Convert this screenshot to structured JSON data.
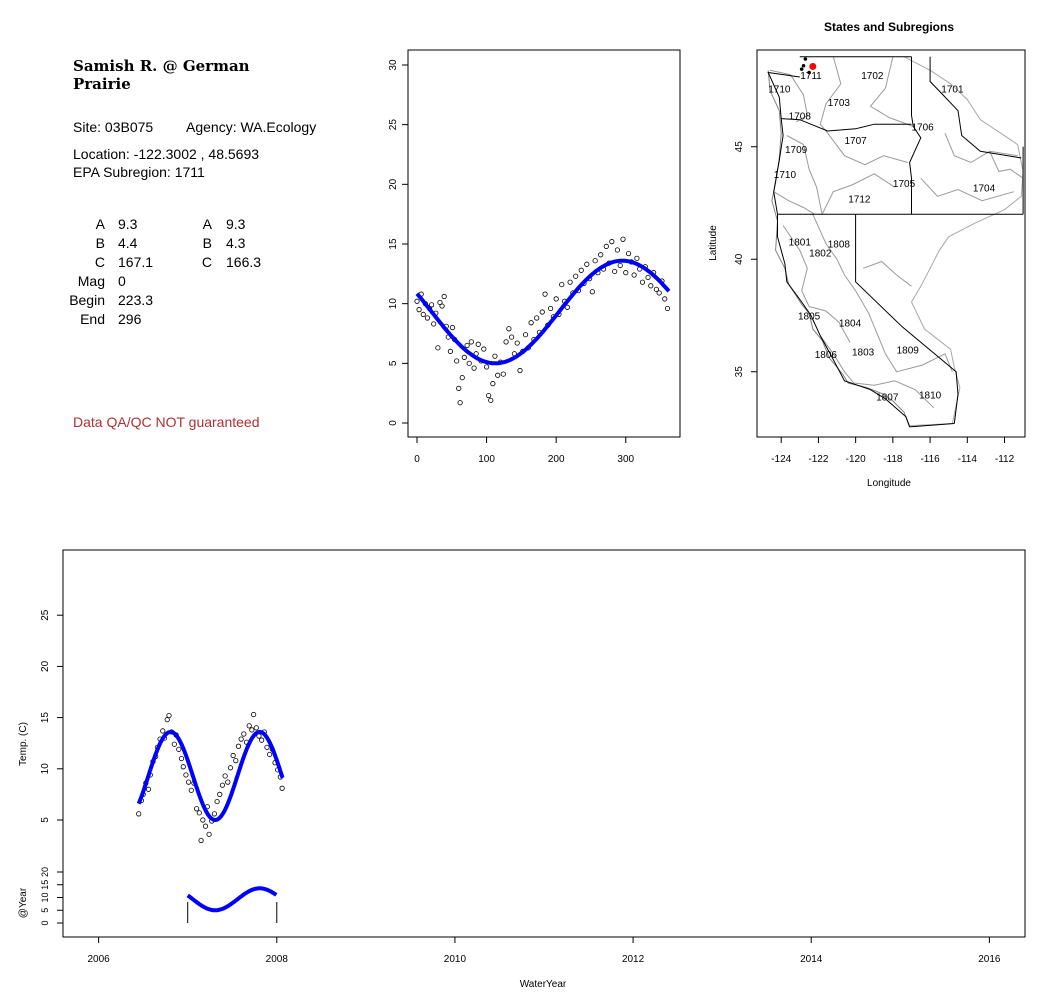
{
  "site_info": {
    "title": "Samish R. @ German Prairie",
    "site": "Site: 03B075",
    "agency": "Agency: WA.Ecology",
    "location": "Location: -122.3002 , 48.5693",
    "subregion": "EPA Subregion: 1711",
    "params_left": [
      {
        "label": "A",
        "value": "9.3"
      },
      {
        "label": "B",
        "value": "4.4"
      },
      {
        "label": "C",
        "value": "167.1"
      },
      {
        "label": "Mag",
        "value": "0"
      },
      {
        "label": "Begin",
        "value": "223.3"
      },
      {
        "label": "End",
        "value": "296"
      }
    ],
    "params_right": [
      {
        "label": "A",
        "value": "9.3"
      },
      {
        "label": "B",
        "value": "4.3"
      },
      {
        "label": "C",
        "value": "166.3"
      }
    ],
    "qa_note": "Data QA/QC NOT guaranteed",
    "qa_color": "#b03030"
  },
  "chart_data": [
    {
      "type": "scatter",
      "name": "day-of-year",
      "title": "",
      "xlabel": "",
      "ylabel": "",
      "xlim": [
        0,
        365
      ],
      "ylim": [
        0,
        30
      ],
      "x_ticks": [
        0,
        100,
        200,
        300
      ],
      "y_ticks": [
        0,
        5,
        10,
        15,
        20,
        25,
        30
      ],
      "fit_params": {
        "A": 9.3,
        "B": 4.3,
        "C": 166.3
      },
      "fit_color": "#0000ff",
      "points": [
        {
          "x": 0,
          "y": 10.2
        },
        {
          "x": 3,
          "y": 9.5
        },
        {
          "x": 6,
          "y": 10.8
        },
        {
          "x": 9,
          "y": 9.1
        },
        {
          "x": 12,
          "y": 10.0
        },
        {
          "x": 15,
          "y": 8.8
        },
        {
          "x": 18,
          "y": 9.6
        },
        {
          "x": 21,
          "y": 9.9
        },
        {
          "x": 24,
          "y": 8.3
        },
        {
          "x": 27,
          "y": 9.2
        },
        {
          "x": 30,
          "y": 6.3
        },
        {
          "x": 33,
          "y": 10.1
        },
        {
          "x": 36,
          "y": 9.8
        },
        {
          "x": 39,
          "y": 10.6
        },
        {
          "x": 42,
          "y": 8.1
        },
        {
          "x": 45,
          "y": 7.2
        },
        {
          "x": 48,
          "y": 6.0
        },
        {
          "x": 51,
          "y": 8.0
        },
        {
          "x": 54,
          "y": 7.0
        },
        {
          "x": 57,
          "y": 5.2
        },
        {
          "x": 60,
          "y": 2.9
        },
        {
          "x": 62,
          "y": 1.7
        },
        {
          "x": 65,
          "y": 3.8
        },
        {
          "x": 68,
          "y": 5.5
        },
        {
          "x": 72,
          "y": 6.5
        },
        {
          "x": 75,
          "y": 5.0
        },
        {
          "x": 78,
          "y": 6.8
        },
        {
          "x": 82,
          "y": 4.6
        },
        {
          "x": 85,
          "y": 5.8
        },
        {
          "x": 88,
          "y": 6.6
        },
        {
          "x": 92,
          "y": 5.2
        },
        {
          "x": 96,
          "y": 6.2
        },
        {
          "x": 100,
          "y": 4.7
        },
        {
          "x": 103,
          "y": 2.3
        },
        {
          "x": 106,
          "y": 1.9
        },
        {
          "x": 109,
          "y": 3.3
        },
        {
          "x": 112,
          "y": 5.6
        },
        {
          "x": 116,
          "y": 4.0
        },
        {
          "x": 120,
          "y": 5.1
        },
        {
          "x": 124,
          "y": 4.1
        },
        {
          "x": 128,
          "y": 6.8
        },
        {
          "x": 132,
          "y": 7.9
        },
        {
          "x": 136,
          "y": 7.2
        },
        {
          "x": 140,
          "y": 5.8
        },
        {
          "x": 144,
          "y": 6.7
        },
        {
          "x": 148,
          "y": 4.4
        },
        {
          "x": 152,
          "y": 6.0
        },
        {
          "x": 156,
          "y": 7.4
        },
        {
          "x": 160,
          "y": 6.3
        },
        {
          "x": 164,
          "y": 8.4
        },
        {
          "x": 168,
          "y": 7.0
        },
        {
          "x": 172,
          "y": 8.8
        },
        {
          "x": 176,
          "y": 7.6
        },
        {
          "x": 180,
          "y": 9.3
        },
        {
          "x": 184,
          "y": 10.8
        },
        {
          "x": 188,
          "y": 8.2
        },
        {
          "x": 192,
          "y": 9.6
        },
        {
          "x": 196,
          "y": 8.9
        },
        {
          "x": 200,
          "y": 10.4
        },
        {
          "x": 204,
          "y": 9.1
        },
        {
          "x": 208,
          "y": 11.6
        },
        {
          "x": 212,
          "y": 10.2
        },
        {
          "x": 216,
          "y": 9.7
        },
        {
          "x": 220,
          "y": 11.8
        },
        {
          "x": 224,
          "y": 10.9
        },
        {
          "x": 228,
          "y": 12.3
        },
        {
          "x": 232,
          "y": 11.1
        },
        {
          "x": 236,
          "y": 12.8
        },
        {
          "x": 240,
          "y": 11.7
        },
        {
          "x": 244,
          "y": 13.3
        },
        {
          "x": 248,
          "y": 12.1
        },
        {
          "x": 252,
          "y": 11.0
        },
        {
          "x": 256,
          "y": 13.6
        },
        {
          "x": 260,
          "y": 12.6
        },
        {
          "x": 264,
          "y": 14.1
        },
        {
          "x": 268,
          "y": 12.9
        },
        {
          "x": 272,
          "y": 14.8
        },
        {
          "x": 276,
          "y": 13.4
        },
        {
          "x": 280,
          "y": 15.2
        },
        {
          "x": 284,
          "y": 12.7
        },
        {
          "x": 288,
          "y": 14.5
        },
        {
          "x": 292,
          "y": 13.2
        },
        {
          "x": 296,
          "y": 15.4
        },
        {
          "x": 300,
          "y": 12.6
        },
        {
          "x": 304,
          "y": 14.2
        },
        {
          "x": 308,
          "y": 13.5
        },
        {
          "x": 312,
          "y": 12.4
        },
        {
          "x": 316,
          "y": 13.8
        },
        {
          "x": 320,
          "y": 12.9
        },
        {
          "x": 324,
          "y": 11.8
        },
        {
          "x": 328,
          "y": 13.1
        },
        {
          "x": 332,
          "y": 12.2
        },
        {
          "x": 336,
          "y": 11.5
        },
        {
          "x": 340,
          "y": 12.6
        },
        {
          "x": 344,
          "y": 11.2
        },
        {
          "x": 348,
          "y": 10.9
        },
        {
          "x": 352,
          "y": 11.9
        },
        {
          "x": 356,
          "y": 10.4
        },
        {
          "x": 360,
          "y": 9.6
        }
      ]
    },
    {
      "type": "map",
      "name": "states-and-subregions",
      "title": "States and Subregions",
      "xlabel": "Longitude",
      "ylabel": "Latitude",
      "xlim": [
        -125.3,
        -110.9
      ],
      "ylim": [
        32.1,
        49.3
      ],
      "x_ticks": [
        -124,
        -122,
        -120,
        -118,
        -116,
        -114,
        -112
      ],
      "y_ticks": [
        35,
        40,
        45
      ],
      "site": {
        "lon": -122.3002,
        "lat": 48.5693,
        "color": "#ff0000"
      },
      "region_labels": [
        {
          "code": "1702",
          "lon": -119.1,
          "lat": 48.2
        },
        {
          "code": "1701",
          "lon": -114.8,
          "lat": 47.6
        },
        {
          "code": "1711",
          "lon": -122.4,
          "lat": 48.2
        },
        {
          "code": "1710",
          "lon": -124.1,
          "lat": 47.6
        },
        {
          "code": "1703",
          "lon": -120.9,
          "lat": 47.0
        },
        {
          "code": "1708",
          "lon": -123.0,
          "lat": 46.4
        },
        {
          "code": "1706",
          "lon": -116.4,
          "lat": 45.9
        },
        {
          "code": "1707",
          "lon": -120.0,
          "lat": 45.3
        },
        {
          "code": "1709",
          "lon": -123.2,
          "lat": 44.9
        },
        {
          "code": "1710",
          "lon": -123.8,
          "lat": 43.8
        },
        {
          "code": "1705",
          "lon": -117.4,
          "lat": 43.4
        },
        {
          "code": "1704",
          "lon": -113.1,
          "lat": 43.2
        },
        {
          "code": "1712",
          "lon": -119.8,
          "lat": 42.7
        },
        {
          "code": "1801",
          "lon": -123.0,
          "lat": 40.8
        },
        {
          "code": "1808",
          "lon": -120.9,
          "lat": 40.7
        },
        {
          "code": "1802",
          "lon": -121.9,
          "lat": 40.3
        },
        {
          "code": "1805",
          "lon": -122.5,
          "lat": 37.5
        },
        {
          "code": "1804",
          "lon": -120.3,
          "lat": 37.2
        },
        {
          "code": "1809",
          "lon": -117.2,
          "lat": 36.0
        },
        {
          "code": "1806",
          "lon": -121.6,
          "lat": 35.8
        },
        {
          "code": "1803",
          "lon": -119.6,
          "lat": 35.9
        },
        {
          "code": "1807",
          "lon": -118.3,
          "lat": 33.9
        },
        {
          "code": "1810",
          "lon": -116.0,
          "lat": 34.0
        }
      ]
    },
    {
      "type": "scatter",
      "name": "time-series",
      "title": "",
      "xlabel": "WaterYear",
      "ylabel": "Temp. (C)",
      "xlim": [
        2005.6,
        2016.4
      ],
      "ylim": [
        0,
        30
      ],
      "x_ticks": [
        2006,
        2008,
        2010,
        2012,
        2014,
        2016
      ],
      "y_ticks": [
        5,
        10,
        15,
        20,
        25
      ],
      "fit_color": "#0000ff",
      "series_start": 2006.45,
      "series_end": 2008.07,
      "points": [
        {
          "x": 2006.45,
          "y": 5.6
        },
        {
          "x": 2006.48,
          "y": 6.9
        },
        {
          "x": 2006.5,
          "y": 7.5
        },
        {
          "x": 2006.53,
          "y": 8.6
        },
        {
          "x": 2006.56,
          "y": 8.0
        },
        {
          "x": 2006.58,
          "y": 9.4
        },
        {
          "x": 2006.61,
          "y": 10.7
        },
        {
          "x": 2006.64,
          "y": 11.2
        },
        {
          "x": 2006.66,
          "y": 12.1
        },
        {
          "x": 2006.69,
          "y": 12.9
        },
        {
          "x": 2006.72,
          "y": 13.7
        },
        {
          "x": 2006.74,
          "y": 13.0
        },
        {
          "x": 2006.77,
          "y": 14.8
        },
        {
          "x": 2006.79,
          "y": 15.2
        },
        {
          "x": 2006.82,
          "y": 13.6
        },
        {
          "x": 2006.85,
          "y": 12.4
        },
        {
          "x": 2006.87,
          "y": 13.3
        },
        {
          "x": 2006.9,
          "y": 11.9
        },
        {
          "x": 2006.93,
          "y": 11.0
        },
        {
          "x": 2006.95,
          "y": 10.2
        },
        {
          "x": 2006.98,
          "y": 9.4
        },
        {
          "x": 2007.01,
          "y": 8.7
        },
        {
          "x": 2007.04,
          "y": 7.9
        },
        {
          "x": 2007.07,
          "y": 8.6
        },
        {
          "x": 2007.1,
          "y": 6.1
        },
        {
          "x": 2007.13,
          "y": 5.7
        },
        {
          "x": 2007.15,
          "y": 3.0
        },
        {
          "x": 2007.17,
          "y": 5.0
        },
        {
          "x": 2007.2,
          "y": 4.4
        },
        {
          "x": 2007.22,
          "y": 6.3
        },
        {
          "x": 2007.24,
          "y": 3.6
        },
        {
          "x": 2007.27,
          "y": 4.9
        },
        {
          "x": 2007.3,
          "y": 5.6
        },
        {
          "x": 2007.33,
          "y": 6.8
        },
        {
          "x": 2007.36,
          "y": 7.5
        },
        {
          "x": 2007.39,
          "y": 8.4
        },
        {
          "x": 2007.42,
          "y": 9.3
        },
        {
          "x": 2007.45,
          "y": 8.7
        },
        {
          "x": 2007.48,
          "y": 10.1
        },
        {
          "x": 2007.51,
          "y": 11.3
        },
        {
          "x": 2007.54,
          "y": 10.8
        },
        {
          "x": 2007.57,
          "y": 12.2
        },
        {
          "x": 2007.6,
          "y": 12.9
        },
        {
          "x": 2007.63,
          "y": 13.4
        },
        {
          "x": 2007.66,
          "y": 12.6
        },
        {
          "x": 2007.69,
          "y": 14.2
        },
        {
          "x": 2007.72,
          "y": 13.8
        },
        {
          "x": 2007.74,
          "y": 15.3
        },
        {
          "x": 2007.77,
          "y": 14.0
        },
        {
          "x": 2007.8,
          "y": 13.2
        },
        {
          "x": 2007.83,
          "y": 12.8
        },
        {
          "x": 2007.86,
          "y": 13.6
        },
        {
          "x": 2007.89,
          "y": 12.1
        },
        {
          "x": 2007.92,
          "y": 11.4
        },
        {
          "x": 2007.95,
          "y": 11.9
        },
        {
          "x": 2007.98,
          "y": 10.6
        },
        {
          "x": 2008.01,
          "y": 9.9
        },
        {
          "x": 2008.04,
          "y": 9.2
        },
        {
          "x": 2008.06,
          "y": 8.1
        }
      ]
    },
    {
      "type": "line",
      "name": "at-year",
      "title": "",
      "xlabel": "",
      "ylabel": "@Year",
      "xlim": [
        2005.6,
        2016.4
      ],
      "ylim": [
        -2,
        30
      ],
      "y_ticks": [
        0,
        5,
        10,
        15,
        20
      ],
      "series_start": 2007.0,
      "series_end": 2008.0,
      "fit_color": "#0000ff"
    }
  ]
}
